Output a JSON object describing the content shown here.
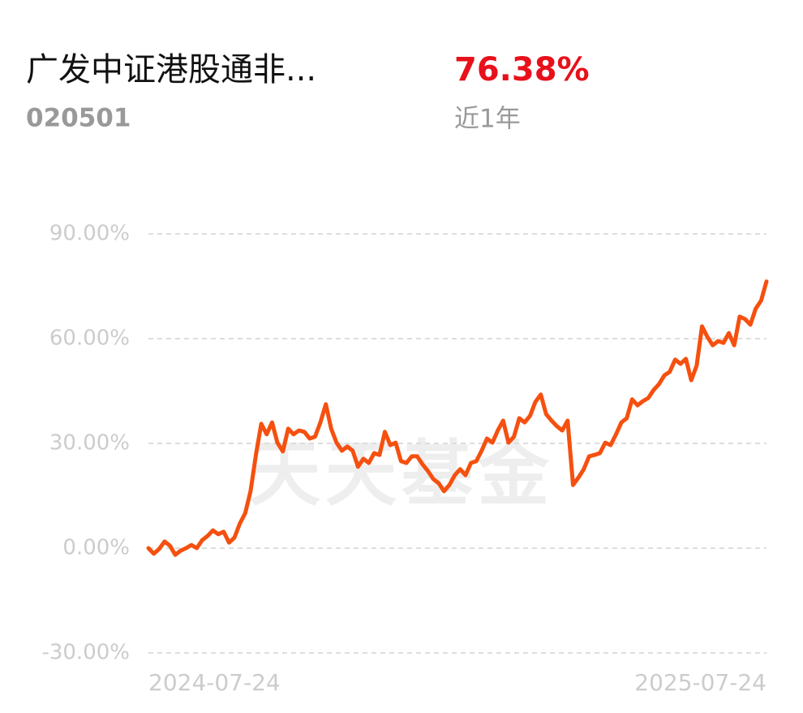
{
  "header": {
    "name": "广发中证港股通非...",
    "code": "020501",
    "return": "76.38%",
    "period": "近1年"
  },
  "chart_data": {
    "type": "line",
    "watermark": "天天基金",
    "categories": [
      "2024-07-24",
      null,
      null,
      null,
      null,
      null,
      null,
      null,
      null,
      null,
      null,
      null,
      null,
      null,
      null,
      null,
      null,
      null,
      null,
      null,
      null,
      null,
      null,
      null,
      null,
      null,
      null,
      null,
      null,
      null,
      null,
      null,
      null,
      null,
      null,
      null,
      null,
      null,
      null,
      null,
      null,
      null,
      null,
      null,
      null,
      null,
      null,
      null,
      null,
      null,
      null,
      null,
      null,
      null,
      null,
      null,
      null,
      null,
      null,
      null,
      null,
      null,
      null,
      null,
      null,
      null,
      null,
      null,
      null,
      null,
      null,
      null,
      null,
      null,
      null,
      null,
      null,
      null,
      null,
      null,
      null,
      null,
      null,
      null,
      null,
      null,
      null,
      null,
      null,
      null,
      null,
      null,
      null,
      null,
      null,
      null,
      null,
      null,
      null,
      null,
      null,
      null,
      null,
      null,
      null,
      null,
      null,
      null,
      null,
      null,
      null,
      null,
      null,
      null,
      null,
      "2025-07-24"
    ],
    "series": [
      {
        "name": null,
        "color": "#f5500f",
        "values": [
          0,
          -1.6,
          -0.2,
          1.9,
          0.7,
          -1.9,
          -0.7,
          0,
          0.9,
          0,
          2.3,
          3.5,
          5.1,
          4,
          4.7,
          1.6,
          3,
          7,
          10,
          16.3,
          26.7,
          35.6,
          32.6,
          36,
          30.2,
          27.7,
          34.2,
          32.6,
          33.7,
          33.3,
          31.4,
          31.9,
          36,
          41.2,
          34.2,
          30.2,
          27.9,
          29.1,
          27.9,
          23.3,
          25.6,
          24.4,
          27.2,
          26.7,
          33.3,
          29.5,
          30.2,
          24.9,
          24.4,
          26.3,
          26.3,
          24,
          22.1,
          19.8,
          18.6,
          16.3,
          18.1,
          20.9,
          22.6,
          20.9,
          24.4,
          24.9,
          27.9,
          31.4,
          30.2,
          33.7,
          36.5,
          30.2,
          31.9,
          37.2,
          36,
          37.9,
          41.9,
          44,
          38.4,
          36.5,
          34.9,
          33.7,
          36.5,
          18.1,
          20.2,
          22.6,
          26.3,
          26.7,
          27.2,
          30.2,
          29.5,
          32.6,
          36,
          37.2,
          42.6,
          40.9,
          42.1,
          43,
          45.3,
          47,
          49.5,
          50.5,
          54,
          52.8,
          54.2,
          48.1,
          52.3,
          63.5,
          60.5,
          58.1,
          59.3,
          58.8,
          61.6,
          58.1,
          66.3,
          65.6,
          64,
          68.6,
          70.9,
          76.38
        ]
      }
    ],
    "ylim": [
      -30,
      90
    ],
    "yticks": [
      {
        "value": -30,
        "label": "-30.00%"
      },
      {
        "value": 0,
        "label": "0.00%"
      },
      {
        "value": 30,
        "label": "30.00%"
      },
      {
        "value": 60,
        "label": "60.00%"
      },
      {
        "value": 90,
        "label": "90.00%"
      }
    ],
    "grid": true
  }
}
